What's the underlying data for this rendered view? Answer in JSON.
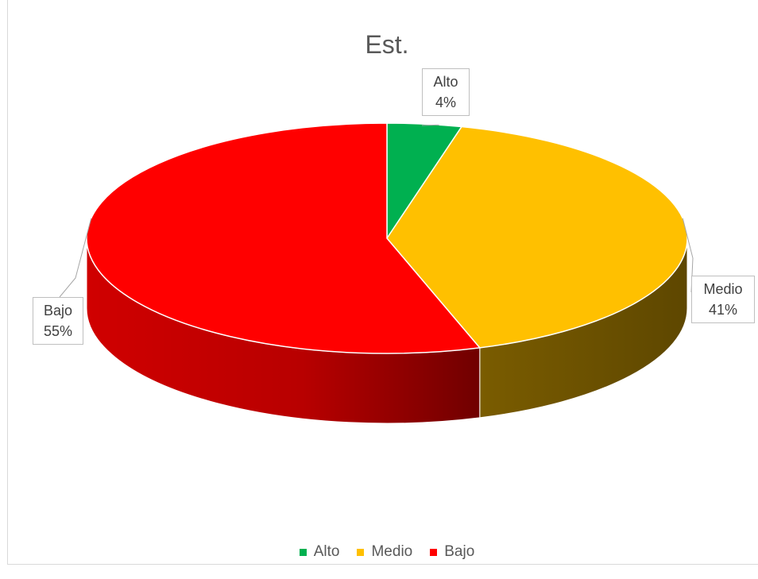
{
  "chart_data": {
    "type": "pie",
    "title": "Est.",
    "categories": [
      "Alto",
      "Medio",
      "Bajo"
    ],
    "values": [
      4,
      41,
      55
    ],
    "value_labels": [
      "4%",
      "41%",
      "55%"
    ],
    "colors": [
      "#00b050",
      "#ffc000",
      "#ff0000"
    ],
    "three_d": true,
    "legend_position": "bottom"
  }
}
